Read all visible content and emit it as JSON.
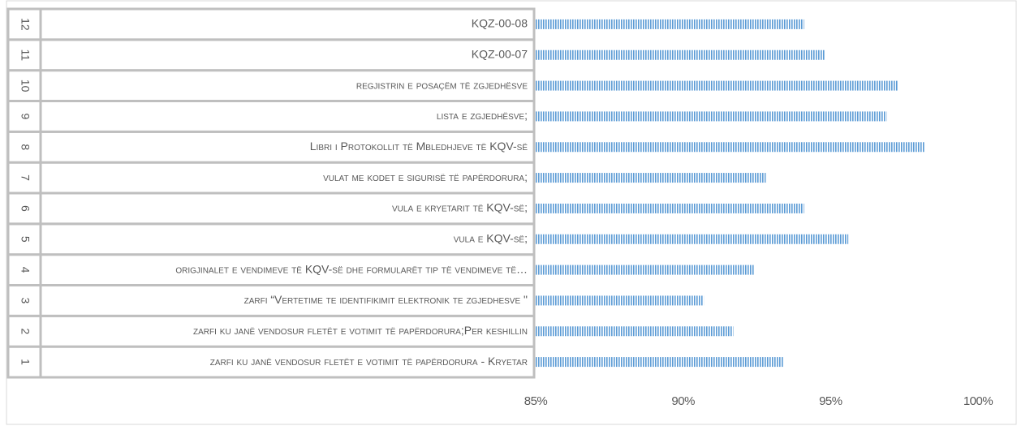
{
  "chart_data": {
    "type": "barh",
    "row_numbers": [
      "1",
      "2",
      "3",
      "4",
      "5",
      "6",
      "7",
      "8",
      "9",
      "10",
      "11",
      "12"
    ],
    "categories": [
      "zarfi ku janë vendosur fletët e votimit të papërdorura - Kryetar",
      "zarfi ku janë vendosur fletët e votimit të papërdorura;Per keshillin",
      "zarfi “Vertetime te identifikimit elektronik te zgjedhesve \"",
      "origjinalet e vendimeve të KQV-së dhe formularët tip të vendimeve të…",
      "vula e KQV-së;",
      "vula e kryetarit të KQV-së;",
      "vulat me kodet e sigurisë të papërdorura;",
      "Libri i Protokollit të Mbledhjeve të KQV-së",
      "lista e zgjedhësve;",
      "regjistrin e posaçëm të zgjedhësve",
      "KQZ-00-07",
      "KQZ-00-08"
    ],
    "values": [
      93.4,
      91.7,
      90.7,
      92.4,
      95.6,
      94.1,
      92.8,
      98.2,
      96.9,
      97.3,
      94.8,
      94.1
    ],
    "color": "#5b9bd5",
    "xlim": [
      85,
      100
    ],
    "xticks": [
      {
        "value": 85,
        "label": "85%"
      },
      {
        "value": 90,
        "label": "90%"
      },
      {
        "value": 95,
        "label": "95%"
      },
      {
        "value": 100,
        "label": "100%"
      }
    ]
  }
}
